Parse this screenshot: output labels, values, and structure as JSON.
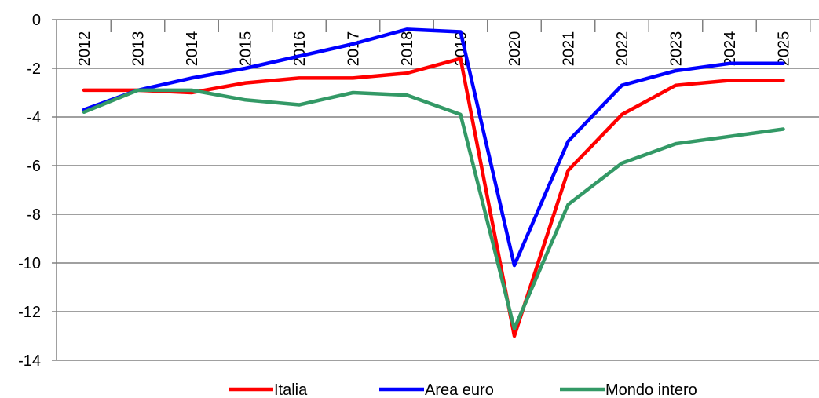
{
  "chart_data": {
    "type": "line",
    "x": [
      "2012",
      "2013",
      "2014",
      "2015",
      "2016",
      "2017",
      "2018",
      "2019",
      "2020",
      "2021",
      "2022",
      "2023",
      "2024",
      "2025"
    ],
    "series": [
      {
        "name": "Italia",
        "color": "#ff0000",
        "values": [
          -2.9,
          -2.9,
          -3.0,
          -2.6,
          -2.4,
          -2.4,
          -2.2,
          -1.6,
          -13.0,
          -6.2,
          -3.9,
          -2.7,
          -2.5,
          -2.5
        ]
      },
      {
        "name": "Area euro",
        "color": "#0000ff",
        "values": [
          -3.7,
          -2.9,
          -2.4,
          -2.0,
          -1.5,
          -1.0,
          -0.4,
          -0.5,
          -10.1,
          -5.0,
          -2.7,
          -2.1,
          -1.8,
          -1.8
        ]
      },
      {
        "name": "Mondo intero",
        "color": "#339966",
        "values": [
          -3.8,
          -2.9,
          -2.9,
          -3.3,
          -3.5,
          -3.0,
          -3.1,
          -3.9,
          -12.7,
          -7.6,
          -5.9,
          -5.1,
          -4.8,
          -4.5
        ]
      }
    ],
    "yticks": [
      "0",
      "-2",
      "-4",
      "-6",
      "-8",
      "-10",
      "-12",
      "-14"
    ],
    "ylim": [
      -14,
      0
    ],
    "grid": true,
    "legend_position": "bottom"
  }
}
